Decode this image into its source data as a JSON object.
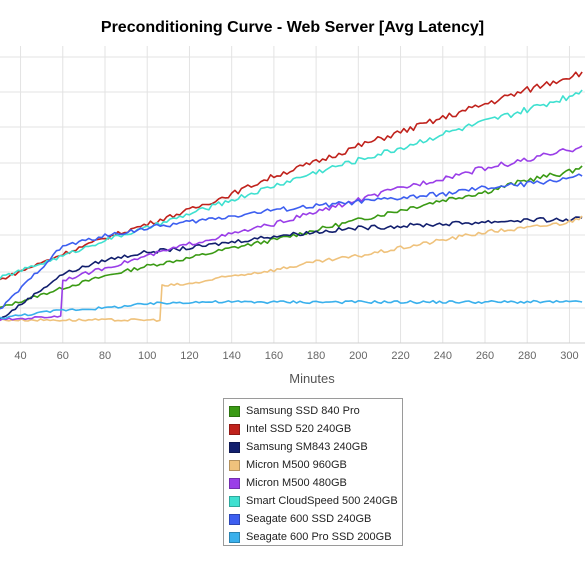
{
  "chart_data": {
    "type": "line",
    "title": "Preconditioning Curve - Web Server [Avg Latency]",
    "xlabel": "Minutes",
    "ylabel": "",
    "x_ticks": [
      40,
      60,
      80,
      100,
      120,
      140,
      160,
      180,
      200,
      220,
      240,
      260,
      280,
      300
    ],
    "xlim": [
      30,
      306
    ],
    "grid": true,
    "legend_placement": "bottom-center",
    "series": [
      {
        "name": "Samsung SSD 840 Pro",
        "color": "#3a9a14",
        "x": [
          30,
          60,
          80,
          100,
          120,
          140,
          160,
          180,
          200,
          220,
          240,
          260,
          280,
          300,
          306
        ],
        "y": [
          0.06,
          0.16,
          0.22,
          0.27,
          0.31,
          0.36,
          0.4,
          0.45,
          0.5,
          0.55,
          0.6,
          0.64,
          0.7,
          0.74,
          0.77
        ]
      },
      {
        "name": "Intel SSD 520 240GB",
        "color": "#c0221c",
        "x": [
          30,
          60,
          80,
          100,
          120,
          140,
          160,
          180,
          200,
          220,
          240,
          260,
          280,
          300,
          306
        ],
        "y": [
          0.2,
          0.33,
          0.41,
          0.48,
          0.55,
          0.63,
          0.72,
          0.79,
          0.87,
          0.94,
          1.01,
          1.08,
          1.15,
          1.22,
          1.24
        ]
      },
      {
        "name": "Samsung SM843 240GB",
        "color": "#121f6e",
        "x": [
          30,
          60,
          80,
          100,
          120,
          140,
          160,
          180,
          200,
          220,
          240,
          260,
          280,
          300,
          306
        ],
        "y": [
          0.0,
          0.23,
          0.3,
          0.34,
          0.36,
          0.39,
          0.42,
          0.44,
          0.46,
          0.47,
          0.48,
          0.49,
          0.5,
          0.5,
          0.51
        ]
      },
      {
        "name": "Micron M500 960GB",
        "color": "#efc27c",
        "x": [
          30,
          60,
          80,
          100,
          106,
          107,
          120,
          140,
          160,
          180,
          200,
          220,
          240,
          260,
          280,
          300,
          306
        ],
        "y": [
          0.0,
          0.0,
          0.0,
          0.0,
          0.0,
          0.17,
          0.18,
          0.22,
          0.25,
          0.29,
          0.32,
          0.36,
          0.4,
          0.44,
          0.46,
          0.49,
          0.52
        ]
      },
      {
        "name": "Micron M500 480GB",
        "color": "#9a3ee8",
        "x": [
          30,
          59,
          60,
          80,
          100,
          120,
          140,
          160,
          180,
          200,
          220,
          240,
          260,
          280,
          300,
          306
        ],
        "y": [
          0.0,
          0.02,
          0.2,
          0.26,
          0.32,
          0.38,
          0.43,
          0.48,
          0.54,
          0.6,
          0.66,
          0.71,
          0.76,
          0.8,
          0.85,
          0.87
        ]
      },
      {
        "name": "Smart CloudSpeed 500 240GB",
        "color": "#3fe0d0",
        "x": [
          30,
          60,
          80,
          100,
          120,
          140,
          160,
          180,
          200,
          220,
          240,
          260,
          280,
          300,
          306
        ],
        "y": [
          0.21,
          0.32,
          0.4,
          0.46,
          0.53,
          0.6,
          0.67,
          0.74,
          0.8,
          0.86,
          0.93,
          0.99,
          1.05,
          1.12,
          1.15
        ]
      },
      {
        "name": "Seagate 600 SSD 240GB",
        "color": "#3d5ff0",
        "x": [
          30,
          60,
          80,
          100,
          120,
          140,
          160,
          180,
          200,
          220,
          240,
          260,
          280,
          300,
          306
        ],
        "y": [
          0.05,
          0.37,
          0.42,
          0.46,
          0.49,
          0.52,
          0.55,
          0.57,
          0.59,
          0.61,
          0.63,
          0.66,
          0.68,
          0.71,
          0.72
        ]
      },
      {
        "name": "Seagate 600 Pro SSD 200GB",
        "color": "#3ab0ec",
        "x": [
          30,
          60,
          80,
          100,
          120,
          140,
          160,
          180,
          200,
          220,
          240,
          260,
          280,
          300,
          306
        ],
        "y": [
          0.01,
          0.05,
          0.06,
          0.08,
          0.09,
          0.09,
          0.09,
          0.09,
          0.09,
          0.09,
          0.09,
          0.09,
          0.09,
          0.09,
          0.09
        ]
      }
    ]
  }
}
